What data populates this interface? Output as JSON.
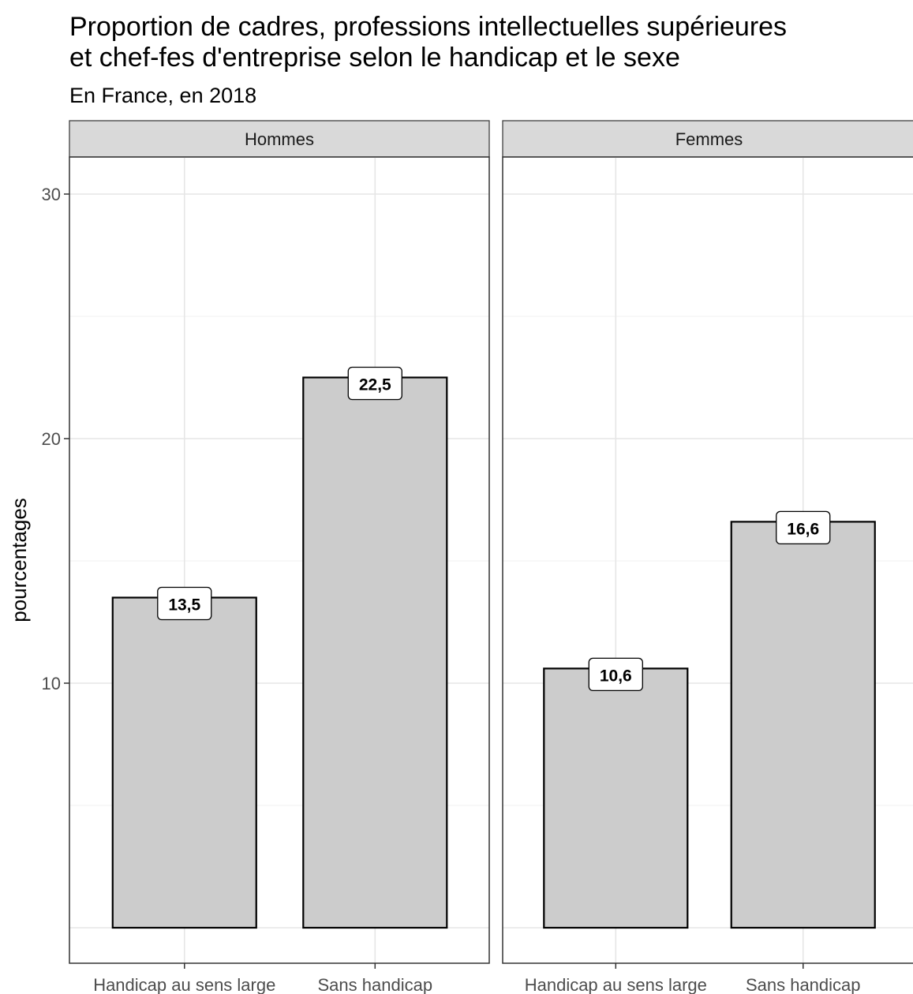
{
  "chart_data": {
    "type": "bar",
    "title_lines": [
      "Proportion de cadres, professions intellectuelles supérieures",
      "et chef-fes d'entreprise selon le handicap et le sexe"
    ],
    "subtitle": "En France, en 2018",
    "ylabel": "pourcentages",
    "xlabel": "",
    "ylim": [
      0,
      31.5
    ],
    "y_ticks": [
      10,
      20,
      30
    ],
    "y_tick_labels": [
      "10",
      "20",
      "30"
    ],
    "categories": [
      "Handicap au sens large",
      "Sans handicap"
    ],
    "bar_fill": "#cccccc",
    "bar_stroke": "#000000",
    "grid": true,
    "legend": "none",
    "panels": [
      {
        "name": "Hommes",
        "values": [
          13.5,
          22.5
        ],
        "labels": [
          "13,5",
          "22,5"
        ]
      },
      {
        "name": "Femmes",
        "values": [
          10.6,
          16.6
        ],
        "labels": [
          "10,6",
          "16,6"
        ]
      }
    ]
  }
}
